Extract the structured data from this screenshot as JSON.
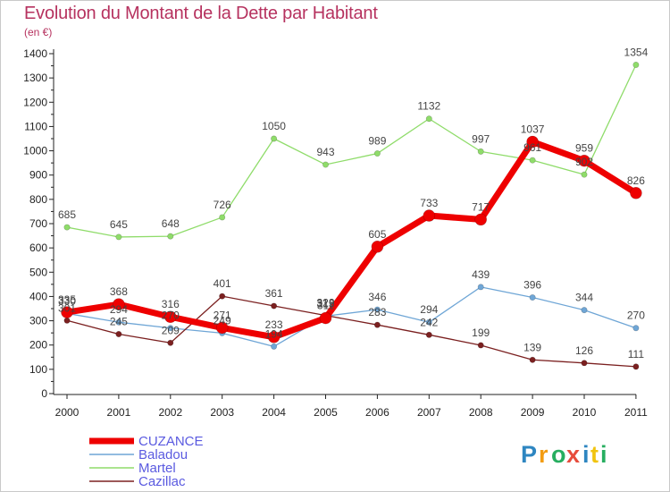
{
  "chart_data": {
    "type": "line",
    "title": "Evolution du Montant de la Dette par Habitant",
    "subtitle": "(en €)",
    "xlabel": "",
    "ylabel": "",
    "x": [
      "2000",
      "2001",
      "2002",
      "2003",
      "2004",
      "2005",
      "2006",
      "2007",
      "2008",
      "2009",
      "2010",
      "2011"
    ],
    "ylim": [
      0,
      1400
    ],
    "yticks": [
      0,
      100,
      200,
      300,
      400,
      500,
      600,
      700,
      800,
      900,
      1000,
      1100,
      1200,
      1300,
      1400
    ],
    "grid": false,
    "legend_position": "bottom-left",
    "series": [
      {
        "name": "Martel",
        "color": "#8fdc6a",
        "values": [
          685,
          645,
          648,
          726,
          1050,
          943,
          989,
          1132,
          997,
          961,
          902,
          1354
        ],
        "labels": [
          "685",
          "645",
          "648",
          "726",
          "1050",
          "943",
          "989",
          "1132",
          "997",
          "961",
          "902",
          "1354"
        ]
      },
      {
        "name": "Baladou",
        "color": "#6fa6d6",
        "values": [
          330,
          294,
          270,
          249,
          194,
          319,
          346,
          294,
          439,
          396,
          344,
          270
        ],
        "labels": [
          "330",
          "294",
          "270",
          "249",
          "194",
          "319",
          "346",
          "294",
          "439",
          "396",
          "344",
          "270"
        ]
      },
      {
        "name": "Cazillac",
        "color": "#7b2020",
        "values": [
          301,
          245,
          209,
          401,
          361,
          322,
          283,
          242,
          199,
          139,
          126,
          111
        ],
        "labels": [
          "301",
          "245",
          "209",
          "401",
          "361",
          "322",
          "283",
          "242",
          "199",
          "139",
          "126",
          "111"
        ]
      },
      {
        "name": "CUZANCE",
        "color": "#ee0000",
        "values": [
          335,
          368,
          316,
          271,
          233,
          311,
          605,
          733,
          717,
          1037,
          959,
          826
        ],
        "labels": [
          "335",
          "368",
          "316",
          "271",
          "233",
          "311",
          "605",
          "733",
          "717",
          "1037",
          "959",
          "826"
        ]
      }
    ]
  },
  "logo": {
    "letters": [
      "P",
      "r",
      "o",
      "x",
      "i",
      "t",
      "i"
    ],
    "colors": [
      "#2e86c1",
      "#f39c12",
      "#27ae60",
      "#e74c3c",
      "#2e86c1",
      "#f1c40f",
      "#27ae60"
    ]
  }
}
